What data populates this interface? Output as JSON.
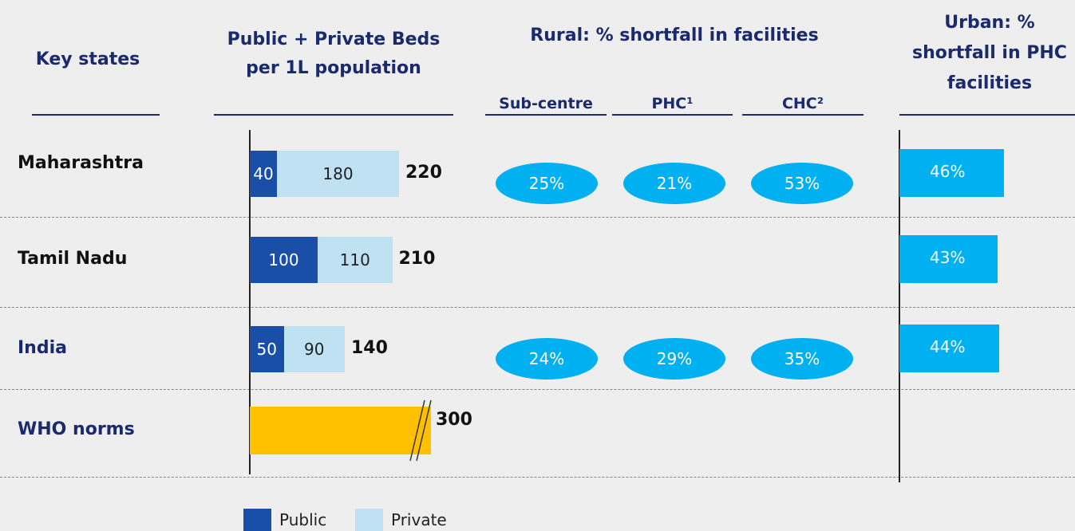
{
  "headers": {
    "states": "Key states",
    "beds": [
      "Public + Private Beds",
      "per 1L population"
    ],
    "rural": "Rural: % shortfall in facilities",
    "rural_columns": [
      "Sub-centre",
      "PHC¹",
      "CHC²"
    ],
    "urban": [
      "Urban: %",
      "shortfall in PHC",
      "facilities"
    ]
  },
  "rows": [
    {
      "state": "Maharashtra",
      "public": 40,
      "private": 180,
      "total": 220,
      "rural": [
        25,
        21,
        53
      ],
      "rural_labels": [
        "25%",
        "21%",
        "53%"
      ],
      "urban": 46,
      "urban_label": "46%"
    },
    {
      "state": "Tamil Nadu",
      "public": 100,
      "private": 110,
      "total": 210,
      "urban": 43,
      "urban_label": "43%"
    },
    {
      "state": "India",
      "public": 50,
      "private": 90,
      "total": 140,
      "rural": [
        24,
        29,
        35
      ],
      "rural_labels": [
        "24%",
        "29%",
        "35%"
      ],
      "urban": 44,
      "urban_label": "44%"
    }
  ],
  "who": {
    "label": "WHO norms",
    "total": 300
  },
  "legend": [
    "Public",
    "Private"
  ],
  "colors": {
    "public": "#1a4fa8",
    "private": "#bfe1f1",
    "who": "#ffc000",
    "rural": "#00b0f0",
    "urban": "#00b0f0"
  }
}
